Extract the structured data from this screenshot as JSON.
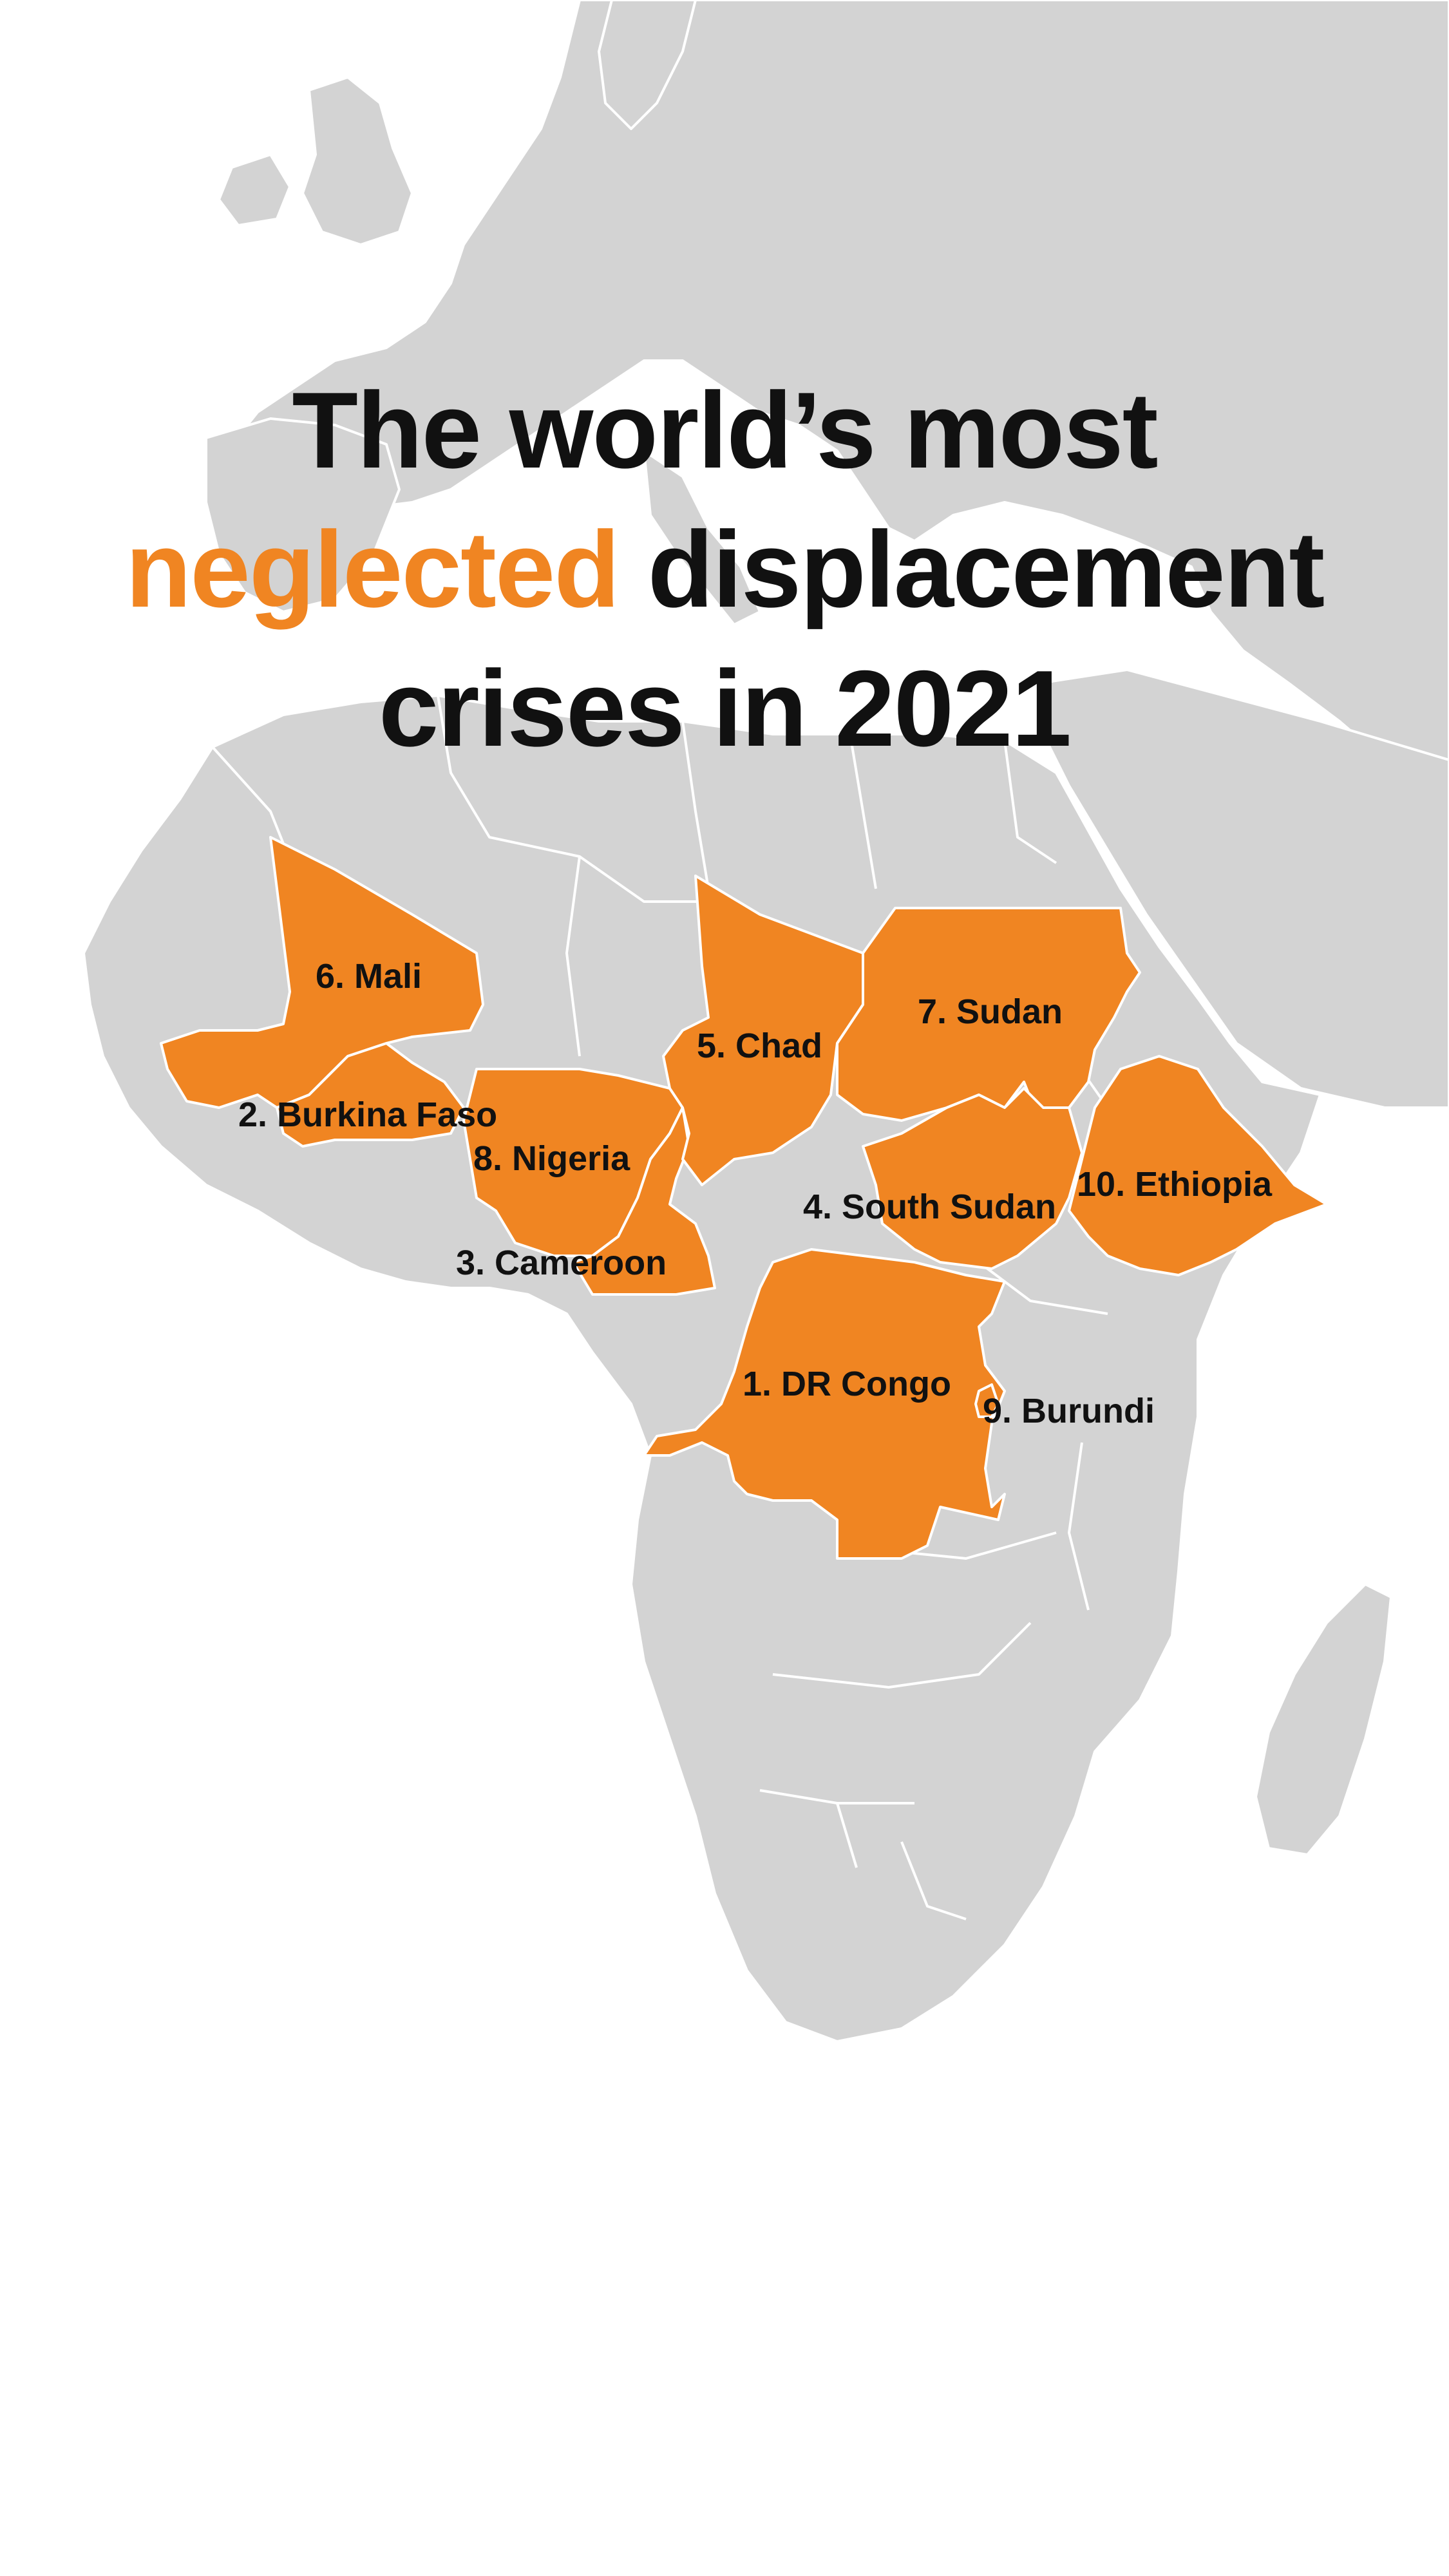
{
  "title": {
    "line1": "The world’s most",
    "line2_highlight": "neglected",
    "line2_rest": " displacement",
    "line3": "crises in 2021"
  },
  "colors": {
    "highlight": "#f08522",
    "land": "#d3d3d3",
    "border": "#ffffff",
    "text": "#111111",
    "background": "#ffffff"
  },
  "countries": [
    {
      "rank": 1,
      "name": "DR Congo",
      "label": "1. DR Congo"
    },
    {
      "rank": 2,
      "name": "Burkina Faso",
      "label": "2. Burkina Faso"
    },
    {
      "rank": 3,
      "name": "Cameroon",
      "label": "3. Cameroon"
    },
    {
      "rank": 4,
      "name": "South Sudan",
      "label": "4. South Sudan"
    },
    {
      "rank": 5,
      "name": "Chad",
      "label": "5. Chad"
    },
    {
      "rank": 6,
      "name": "Mali",
      "label": "6. Mali"
    },
    {
      "rank": 7,
      "name": "Sudan",
      "label": "7. Sudan"
    },
    {
      "rank": 8,
      "name": "Nigeria",
      "label": "8. Nigeria"
    },
    {
      "rank": 9,
      "name": "Burundi",
      "label": "9. Burundi"
    },
    {
      "rank": 10,
      "name": "Ethiopia",
      "label": "10. Ethiopia"
    }
  ]
}
